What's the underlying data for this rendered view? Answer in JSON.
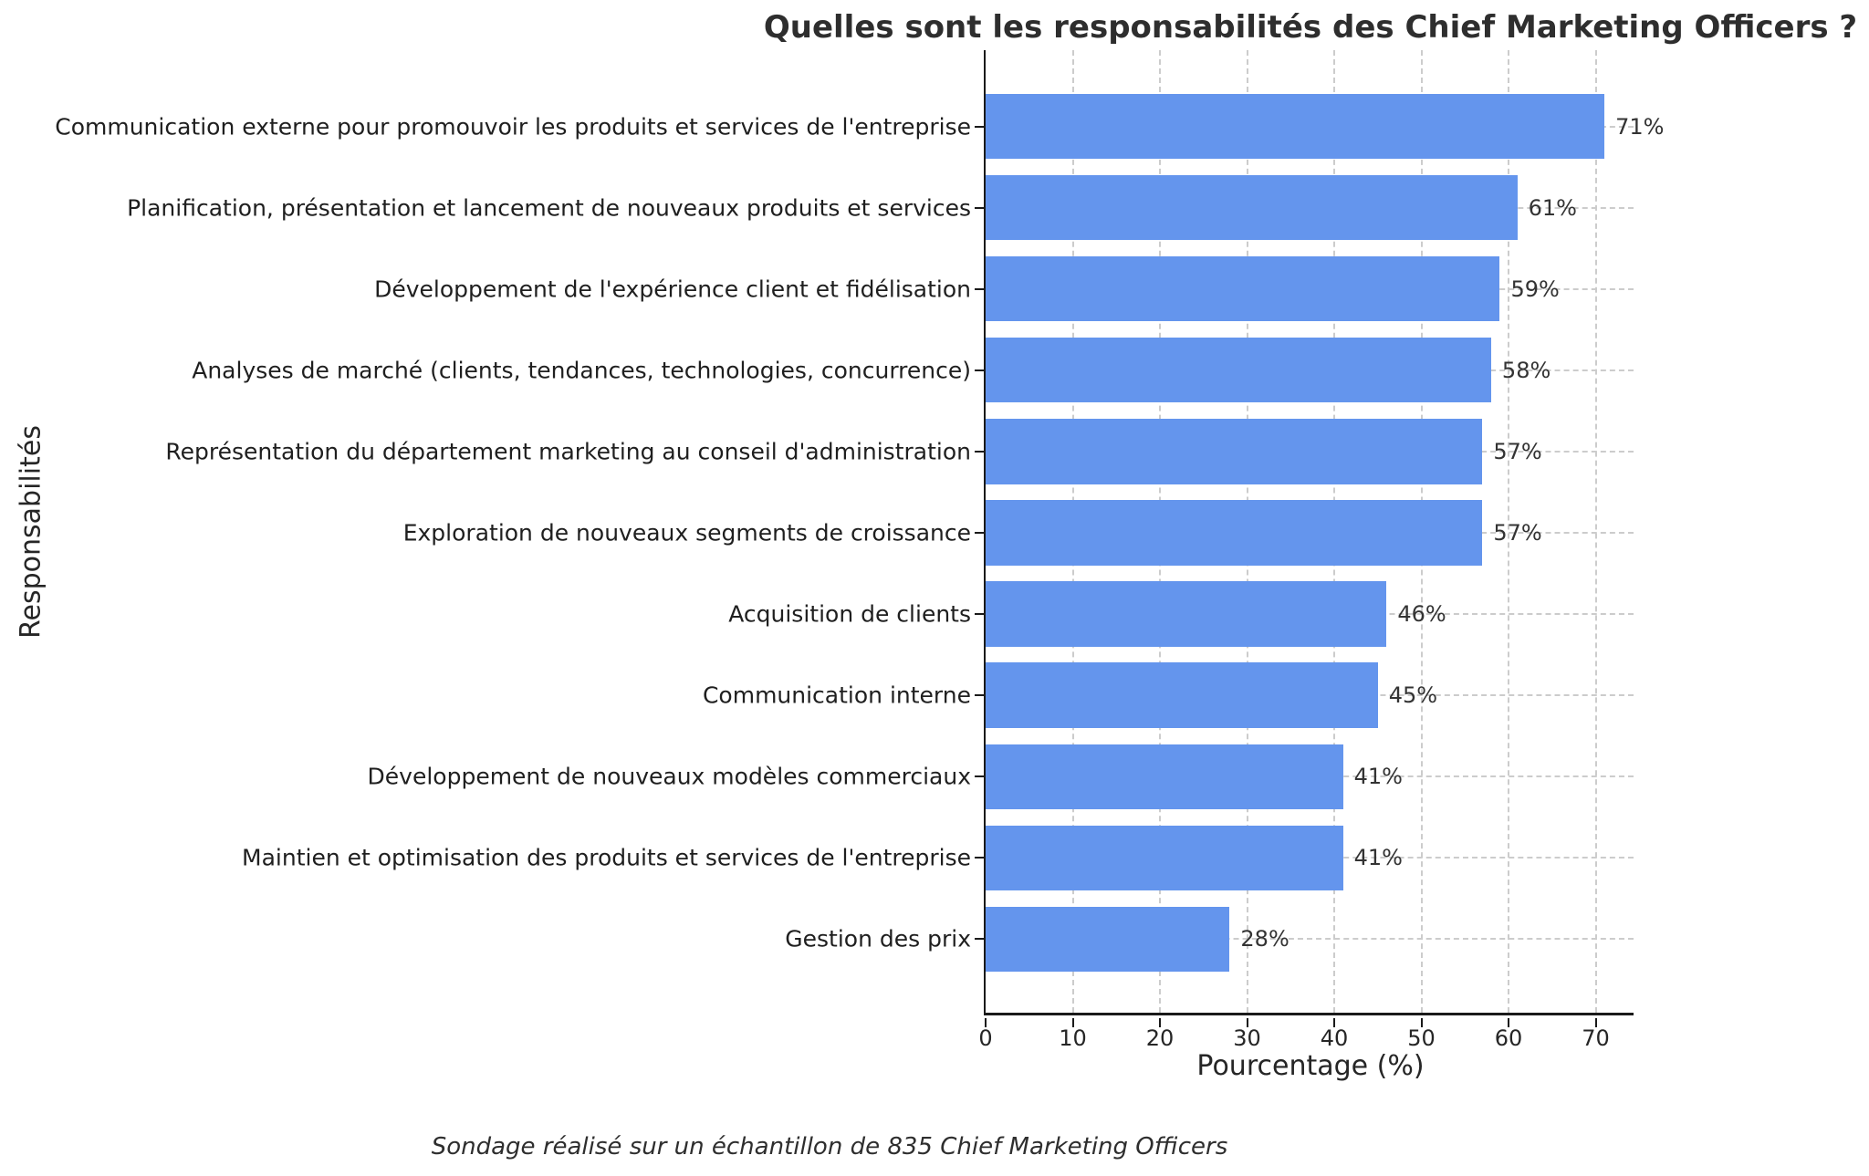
{
  "chart_data": {
    "type": "bar",
    "orientation": "horizontal",
    "title": "Quelles sont les responsabilités des Chief Marketing Officers ?",
    "xlabel": "Pourcentage (%)",
    "ylabel": "Responsabilités",
    "footnote": "Sondage réalisé sur un échantillon de 835 Chief Marketing Officers",
    "categories": [
      "Communication externe pour promouvoir les produits et services de l'entreprise",
      "Planification, présentation et lancement de nouveaux produits et services",
      "Développement de l'expérience client et fidélisation",
      "Analyses de marché (clients, tendances, technologies, concurrence)",
      "Représentation du département marketing au conseil d'administration",
      "Exploration de nouveaux segments de croissance",
      "Acquisition de clients",
      "Communication interne",
      "Développement de nouveaux modèles commerciaux",
      "Maintien et optimisation des produits et services de l'entreprise",
      "Gestion des prix"
    ],
    "values": [
      71,
      61,
      59,
      58,
      57,
      57,
      46,
      45,
      41,
      41,
      28
    ],
    "value_suffix": "%",
    "xticks": [
      0,
      10,
      20,
      30,
      40,
      50,
      60,
      70
    ],
    "xlim": [
      0,
      74.55
    ],
    "bar_color": "#6495ED",
    "grid": {
      "show": true,
      "color": "#cccccc",
      "style": "dashed"
    },
    "legend_position": "none"
  }
}
